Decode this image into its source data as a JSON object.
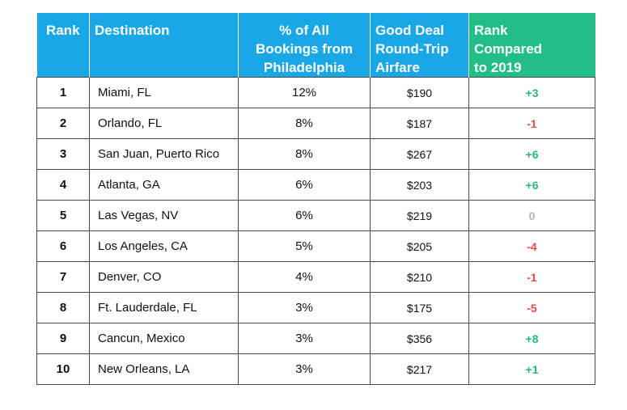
{
  "chart_data": {
    "type": "table",
    "columns": [
      "Rank",
      "Destination",
      "% of All Bookings from Philadelphia",
      "Good Deal Round-Trip Airfare",
      "Rank Compared to 2019"
    ],
    "header_lines": [
      [
        "Rank"
      ],
      [
        "Destination"
      ],
      [
        "% of All",
        "Bookings from",
        "Philadelphia"
      ],
      [
        "Good Deal",
        "Round-Trip",
        "Airfare"
      ],
      [
        "Rank",
        "Compared",
        "to 2019"
      ]
    ],
    "rows": [
      {
        "rank": "1",
        "destination": "Miami, FL",
        "bookings_pct": "12%",
        "airfare": "$190",
        "rank_change": "+3"
      },
      {
        "rank": "2",
        "destination": "Orlando, FL",
        "bookings_pct": "8%",
        "airfare": "$187",
        "rank_change": "-1"
      },
      {
        "rank": "3",
        "destination": "San Juan, Puerto Rico",
        "bookings_pct": "8%",
        "airfare": "$267",
        "rank_change": "+6"
      },
      {
        "rank": "4",
        "destination": "Atlanta, GA",
        "bookings_pct": "6%",
        "airfare": "$203",
        "rank_change": "+6"
      },
      {
        "rank": "5",
        "destination": "Las Vegas, NV",
        "bookings_pct": "6%",
        "airfare": "$219",
        "rank_change": "0"
      },
      {
        "rank": "6",
        "destination": "Los Angeles, CA",
        "bookings_pct": "5%",
        "airfare": "$205",
        "rank_change": "-4"
      },
      {
        "rank": "7",
        "destination": "Denver, CO",
        "bookings_pct": "4%",
        "airfare": "$210",
        "rank_change": "-1"
      },
      {
        "rank": "8",
        "destination": "Ft. Lauderdale, FL",
        "bookings_pct": "3%",
        "airfare": "$175",
        "rank_change": "-5"
      },
      {
        "rank": "9",
        "destination": "Cancun, Mexico",
        "bookings_pct": "3%",
        "airfare": "$356",
        "rank_change": "+8"
      },
      {
        "rank": "10",
        "destination": "New Orleans, LA",
        "bookings_pct": "3%",
        "airfare": "$217",
        "rank_change": "+1"
      }
    ]
  },
  "colors": {
    "header_blue": "#1aa7e6",
    "header_green": "#21bf87",
    "rank_up": "#2bb673",
    "rank_down": "#e8494f",
    "rank_same": "#b5b5b5"
  }
}
